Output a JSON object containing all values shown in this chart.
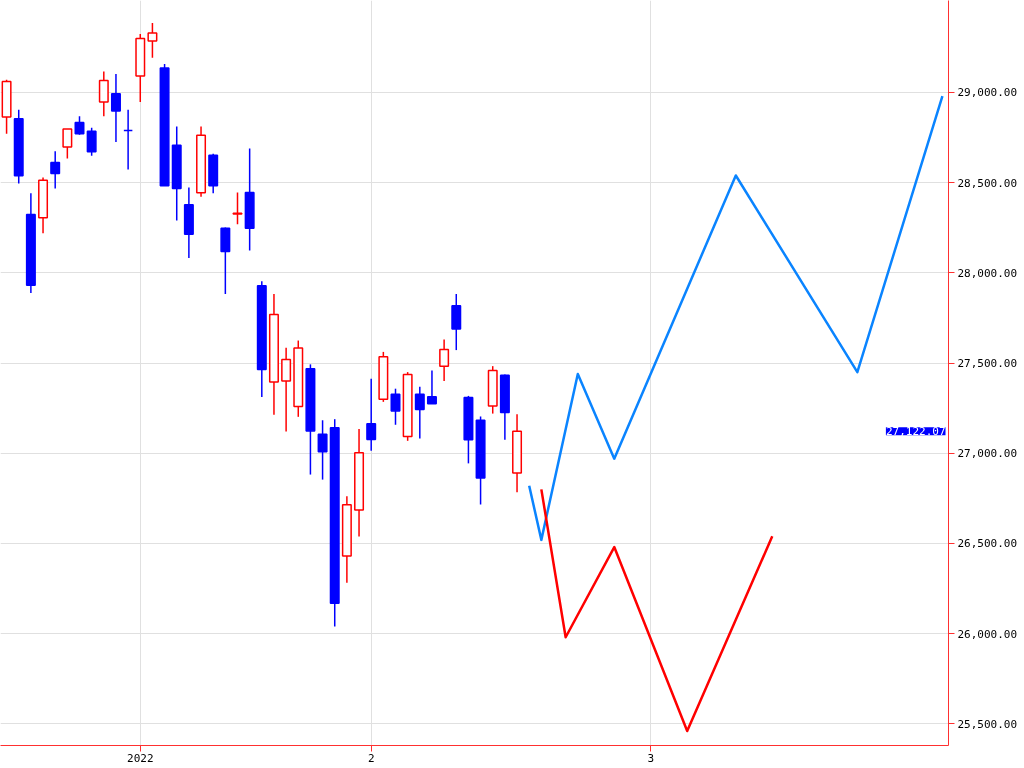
{
  "chart_data": {
    "type": "candlestick",
    "categories": [
      null,
      null,
      null,
      null,
      null,
      null,
      null,
      null,
      null,
      null,
      null,
      "2022",
      null,
      null,
      null,
      null,
      null,
      null,
      null,
      null,
      null,
      null,
      null,
      null,
      null,
      null,
      null,
      null,
      null,
      null,
      "2",
      null,
      null,
      null,
      null,
      null,
      null,
      null,
      null,
      null,
      null,
      null,
      null,
      null,
      null,
      null,
      null,
      null,
      null,
      null,
      null,
      null,
      null,
      "3",
      null,
      null,
      null,
      null,
      null,
      null,
      null,
      null,
      null,
      null,
      null,
      null,
      null,
      null,
      null,
      null,
      null,
      null,
      null,
      null,
      null,
      null,
      null,
      null
    ],
    "ohlc": [
      [
        28864,
        29070,
        28772,
        29061
      ],
      [
        28855,
        28904,
        28496,
        28538
      ],
      [
        28323,
        28441,
        27889,
        27931
      ],
      [
        28305,
        28529,
        28220,
        28514
      ],
      [
        28612,
        28674,
        28468,
        28551
      ],
      [
        28698,
        28798,
        28634,
        28798
      ],
      [
        28833,
        28868,
        28766,
        28772
      ],
      [
        28785,
        28805,
        28649,
        28671
      ],
      [
        28947,
        29116,
        28869,
        29066
      ],
      [
        28993,
        29103,
        28726,
        28897
      ],
      [
        28790,
        28904,
        28573,
        28790
      ],
      [
        29092,
        29324,
        28947,
        29300
      ],
      [
        29285,
        29385,
        29193,
        29330
      ],
      [
        29136,
        29158,
        28483,
        28483
      ],
      [
        28708,
        28812,
        28290,
        28468
      ],
      [
        28378,
        28474,
        28082,
        28214
      ],
      [
        28444,
        28812,
        28422,
        28763
      ],
      [
        28652,
        28660,
        28441,
        28483
      ],
      [
        28248,
        28251,
        27883,
        28119
      ],
      [
        28327,
        28446,
        28270,
        28330
      ],
      [
        28446,
        28689,
        28124,
        28248
      ],
      [
        27929,
        27953,
        27312,
        27465
      ],
      [
        27395,
        27883,
        27213,
        27769
      ],
      [
        27401,
        27585,
        27121,
        27520
      ],
      [
        27259,
        27625,
        27202,
        27583
      ],
      [
        27469,
        27493,
        26882,
        27124
      ],
      [
        27106,
        27183,
        26854,
        27009
      ],
      [
        27141,
        27189,
        26039,
        26168
      ],
      [
        26431,
        26762,
        26282,
        26714
      ],
      [
        26685,
        27134,
        26539,
        27003
      ],
      [
        27163,
        27413,
        27014,
        27077
      ],
      [
        27299,
        27562,
        27285,
        27535
      ],
      [
        27327,
        27358,
        27158,
        27235
      ],
      [
        27093,
        27450,
        27069,
        27437
      ],
      [
        27327,
        27369,
        27082,
        27242
      ],
      [
        27314,
        27459,
        27275,
        27275
      ],
      [
        27483,
        27631,
        27401,
        27575
      ],
      [
        27818,
        27883,
        27572,
        27689
      ],
      [
        27309,
        27318,
        26944,
        27075
      ],
      [
        27183,
        27204,
        26716,
        26863
      ],
      [
        27262,
        27483,
        27220,
        27459
      ],
      [
        27432,
        27437,
        27075,
        27226
      ],
      [
        26891,
        27217,
        26784,
        27122
      ],
      null,
      null,
      null,
      null,
      null,
      null,
      null,
      null,
      null,
      null,
      null,
      null,
      null,
      null,
      null,
      null,
      null,
      null,
      null,
      null,
      null,
      null,
      null,
      null,
      null,
      null,
      null,
      null,
      null,
      null,
      null,
      null,
      null,
      null,
      null
    ],
    "colors": [
      "#ff0000",
      "#0000ff",
      "#0000ff",
      "#ff0000",
      "#0000ff",
      "#ff0000",
      "#0000ff",
      "#0000ff",
      "#ff0000",
      "#0000ff",
      "#0000ff",
      "#ff0000",
      "#ff0000",
      "#0000ff",
      "#0000ff",
      "#0000ff",
      "#ff0000",
      "#0000ff",
      "#0000ff",
      "#ff0000",
      "#0000ff",
      "#0000ff",
      "#ff0000",
      "#ff0000",
      "#ff0000",
      "#0000ff",
      "#0000ff",
      "#0000ff",
      "#ff0000",
      "#ff0000",
      "#0000ff",
      "#ff0000",
      "#0000ff",
      "#ff0000",
      "#0000ff",
      "#0000ff",
      "#ff0000",
      "#0000ff",
      "#0000ff",
      "#0000ff",
      "#ff0000",
      "#0000ff",
      "#ff0000",
      null,
      null,
      null,
      null,
      null,
      null,
      null,
      null,
      null,
      null,
      null,
      null,
      null,
      null,
      null,
      null,
      null,
      null,
      null,
      null,
      null,
      null,
      null,
      null,
      null,
      null,
      null,
      null,
      null,
      null,
      null,
      null,
      null,
      null,
      null
    ],
    "series": [
      {
        "type": "line",
        "color": "#0a84ff",
        "values": [
          null,
          null,
          null,
          null,
          null,
          null,
          null,
          null,
          null,
          null,
          null,
          null,
          null,
          null,
          null,
          null,
          null,
          null,
          null,
          null,
          null,
          null,
          null,
          null,
          null,
          null,
          null,
          null,
          null,
          null,
          null,
          null,
          null,
          null,
          null,
          null,
          null,
          null,
          null,
          null,
          null,
          null,
          null,
          26820,
          26520,
          null,
          null,
          27440,
          null,
          null,
          26970,
          null,
          null,
          null,
          null,
          null,
          null,
          null,
          null,
          null,
          28540,
          null,
          null,
          null,
          null,
          null,
          null,
          null,
          null,
          null,
          27450,
          null,
          null,
          null,
          null,
          null,
          null,
          28980
        ]
      },
      {
        "type": "line",
        "color": "#ff0000",
        "values": [
          null,
          null,
          null,
          null,
          null,
          null,
          null,
          null,
          null,
          null,
          null,
          null,
          null,
          null,
          null,
          null,
          null,
          null,
          null,
          null,
          null,
          null,
          null,
          null,
          null,
          null,
          null,
          null,
          null,
          null,
          null,
          null,
          null,
          null,
          null,
          null,
          null,
          null,
          null,
          null,
          null,
          null,
          null,
          null,
          26800,
          null,
          25980,
          null,
          null,
          null,
          26480,
          null,
          null,
          null,
          null,
          null,
          25460,
          null,
          null,
          null,
          null,
          null,
          null,
          26540,
          null,
          null,
          null,
          null,
          null,
          null,
          null,
          null,
          null,
          null,
          null,
          null,
          null,
          null
        ]
      }
    ],
    "annotations": [
      "27,122.07"
    ],
    "ylim": [
      25380,
      29510
    ],
    "yticks": [
      {
        "value": 25500,
        "label": "25,500.00"
      },
      {
        "value": 26000,
        "label": "26,000.00"
      },
      {
        "value": 26500,
        "label": "26,500.00"
      },
      {
        "value": 27000,
        "label": "27,000.00"
      },
      {
        "value": 27500,
        "label": "27,500.00"
      },
      {
        "value": 28000,
        "label": "28,000.00"
      },
      {
        "value": 28500,
        "label": "28,500.00"
      },
      {
        "value": 29000,
        "label": "29,000.00"
      }
    ],
    "grid": true
  }
}
